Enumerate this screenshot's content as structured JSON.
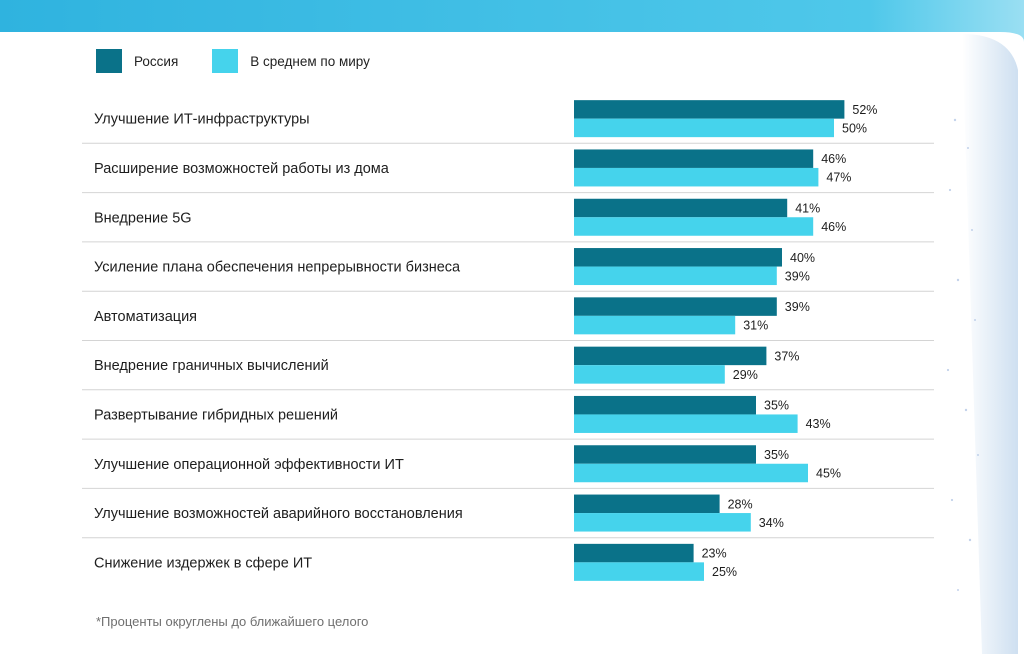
{
  "colors": {
    "russia": "#0a7289",
    "world": "#45d3ec",
    "divider": "#d4d4d4",
    "top_band": "#3ab8e0"
  },
  "chart_data": {
    "type": "bar",
    "orientation": "horizontal",
    "xlim": [
      0,
      60
    ],
    "grid": false,
    "legend_position": "top-left",
    "categories": [
      "Улучшение ИТ-инфраструктуры",
      "Расширение возможностей работы из дома",
      "Внедрение 5G",
      "Усиление плана обеспечения непрерывности бизнеса",
      "Автоматизация",
      "Внедрение граничных вычислений",
      "Развертывание гибридных решений",
      "Улучшение операционной эффективности ИТ",
      "Улучшение возможностей аварийного восстановления",
      "Снижение издержек в сфере ИТ"
    ],
    "series": [
      {
        "name": "Россия",
        "values": [
          52,
          46,
          41,
          40,
          39,
          37,
          35,
          35,
          28,
          23
        ]
      },
      {
        "name": "В среднем по миру",
        "values": [
          50,
          47,
          46,
          39,
          31,
          29,
          43,
          45,
          34,
          25
        ]
      }
    ],
    "value_suffix": "%",
    "footnote": "*Проценты округлены до ближайшего целого"
  }
}
